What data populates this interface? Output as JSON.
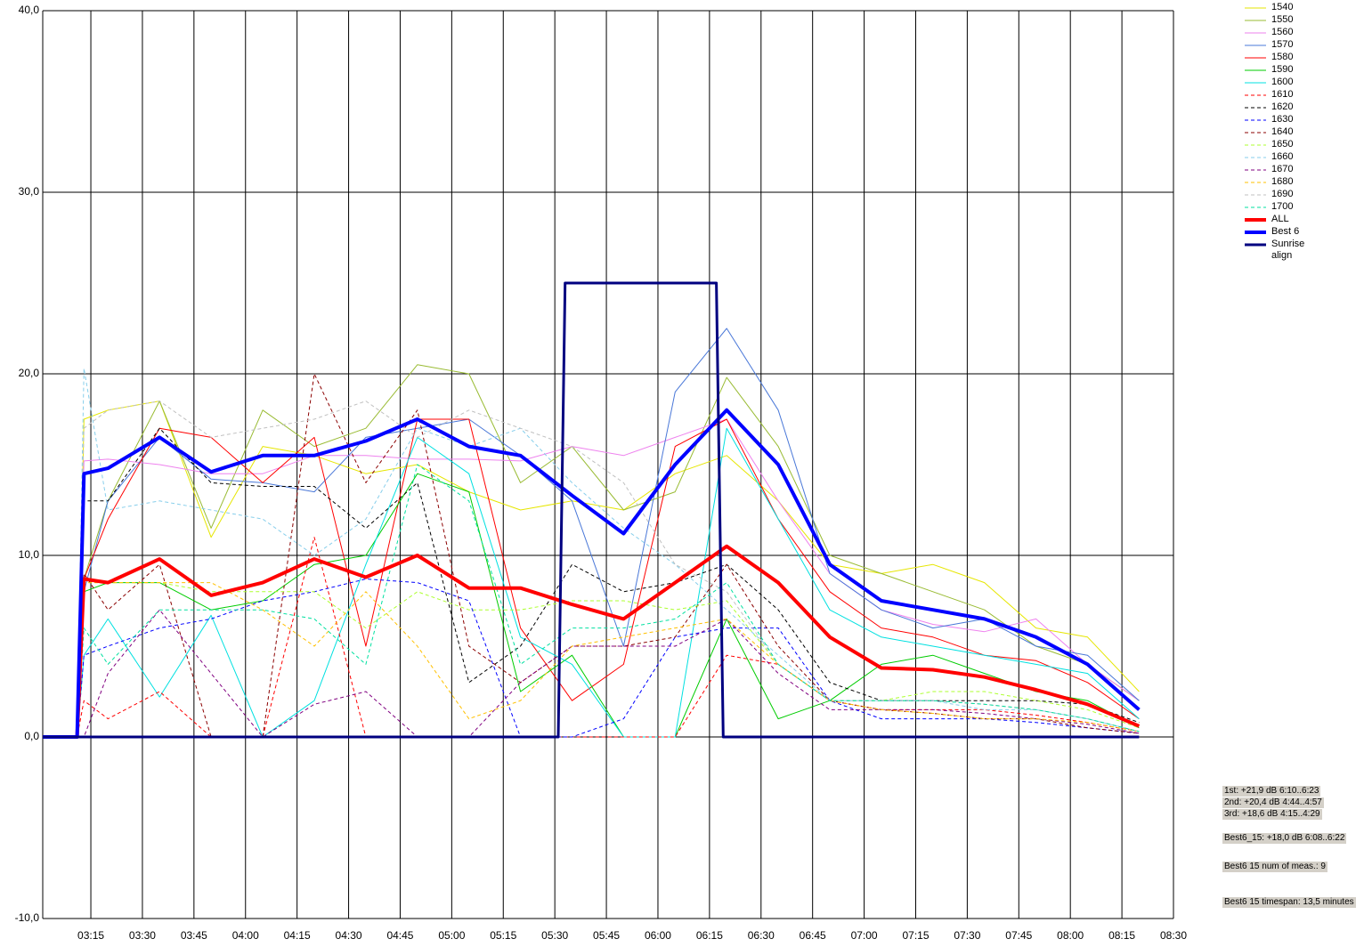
{
  "chart_data": {
    "type": "line",
    "x": [
      181,
      191,
      193,
      200,
      215,
      230,
      245,
      260,
      275,
      290,
      305,
      320,
      335,
      350,
      365,
      380,
      395,
      410,
      425,
      440,
      455,
      470,
      485,
      500
    ],
    "xlim": [
      181,
      510
    ],
    "xticks": [
      {
        "value": 195,
        "label": "03:15"
      },
      {
        "value": 210,
        "label": "03:30"
      },
      {
        "value": 225,
        "label": "03:45"
      },
      {
        "value": 240,
        "label": "04:00"
      },
      {
        "value": 255,
        "label": "04:15"
      },
      {
        "value": 270,
        "label": "04:30"
      },
      {
        "value": 285,
        "label": "04:45"
      },
      {
        "value": 300,
        "label": "05:00"
      },
      {
        "value": 315,
        "label": "05:15"
      },
      {
        "value": 330,
        "label": "05:30"
      },
      {
        "value": 345,
        "label": "05:45"
      },
      {
        "value": 360,
        "label": "06:00"
      },
      {
        "value": 375,
        "label": "06:15"
      },
      {
        "value": 390,
        "label": "06:30"
      },
      {
        "value": 405,
        "label": "06:45"
      },
      {
        "value": 420,
        "label": "07:00"
      },
      {
        "value": 435,
        "label": "07:15"
      },
      {
        "value": 450,
        "label": "07:30"
      },
      {
        "value": 465,
        "label": "07:45"
      },
      {
        "value": 480,
        "label": "08:00"
      },
      {
        "value": 495,
        "label": "08:15"
      },
      {
        "value": 510,
        "label": "08:30"
      }
    ],
    "ylim": [
      -10,
      40
    ],
    "yticks": [
      {
        "value": 40,
        "label": "40,0"
      },
      {
        "value": 30,
        "label": "30,0"
      },
      {
        "value": 20,
        "label": "20,0"
      },
      {
        "value": 10,
        "label": "10,0"
      },
      {
        "value": 0,
        "label": "0,0"
      },
      {
        "value": -10,
        "label": "-10,0"
      }
    ],
    "grid": true,
    "legend": "top-right",
    "series": [
      {
        "name": "1540",
        "color": "#e6e600",
        "dash": false,
        "width": 1,
        "values": [
          0,
          0,
          17.5,
          18,
          18.5,
          11,
          16,
          15.5,
          14.5,
          15,
          13.5,
          12.5,
          13,
          12.5,
          14.5,
          15.5,
          13,
          9.5,
          9,
          9.5,
          8.5,
          6,
          5.5,
          2.5
        ]
      },
      {
        "name": "1550",
        "color": "#99bb33",
        "dash": false,
        "width": 1,
        "values": [
          0,
          0,
          8.7,
          13,
          18.5,
          11.5,
          18,
          16,
          17,
          20.5,
          20,
          14,
          16,
          12.5,
          13.5,
          19.8,
          16,
          10,
          9,
          8,
          7,
          5,
          4,
          2
        ]
      },
      {
        "name": "1560",
        "color": "#ee82ee",
        "dash": false,
        "width": 1,
        "values": [
          0,
          0,
          15.2,
          15.3,
          15,
          14.5,
          14.5,
          15.5,
          15.5,
          15.3,
          15.3,
          15.2,
          16,
          15.5,
          16.5,
          17.5,
          13,
          9,
          7,
          6.2,
          5.8,
          6.5,
          4,
          2
        ]
      },
      {
        "name": "1570",
        "color": "#4a78d8",
        "dash": false,
        "width": 1,
        "values": [
          0,
          0,
          8,
          13,
          16.5,
          14.2,
          14,
          13.5,
          16.5,
          17,
          17.5,
          15.5,
          13,
          5,
          19,
          22.5,
          18,
          9,
          7,
          6,
          6.5,
          5,
          4.5,
          2
        ]
      },
      {
        "name": "1580",
        "color": "#ff0000",
        "dash": false,
        "width": 1,
        "values": [
          0,
          0,
          8.7,
          12,
          17,
          16.5,
          14,
          16.5,
          5,
          17.5,
          17.5,
          6,
          2,
          4,
          16,
          17.5,
          12,
          8,
          6,
          5.5,
          4.5,
          4.2,
          3,
          1
        ]
      },
      {
        "name": "1590",
        "color": "#00cc00",
        "dash": false,
        "width": 1,
        "values": [
          0,
          0,
          8,
          8.5,
          8.5,
          7,
          7.5,
          9.5,
          10,
          14.5,
          13.5,
          2.5,
          4.5,
          0,
          0,
          6.5,
          1,
          2,
          4,
          4.5,
          3.5,
          2.5,
          2,
          0.5
        ]
      },
      {
        "name": "1600",
        "color": "#00e0e0",
        "dash": false,
        "width": 1,
        "values": [
          0,
          0,
          4.5,
          6.5,
          2.2,
          6.7,
          0,
          2,
          9.5,
          16.5,
          14.5,
          5.5,
          4,
          0,
          0,
          17,
          12,
          7,
          5.5,
          5,
          4.5,
          4,
          3.5,
          1
        ]
      },
      {
        "name": "1610",
        "color": "#ff0000",
        "dash": true,
        "width": 1,
        "values": [
          0,
          0,
          2,
          1,
          2.5,
          0,
          0,
          11,
          0,
          0,
          0,
          0,
          0,
          0,
          0,
          4.5,
          4,
          2,
          1.5,
          1.5,
          1.5,
          1.2,
          0.8,
          0.3
        ]
      },
      {
        "name": "1620",
        "color": "#000000",
        "dash": true,
        "width": 1,
        "values": [
          0,
          0,
          13,
          13,
          17,
          14,
          13.8,
          13.8,
          11.5,
          14,
          3,
          5,
          9.5,
          8,
          8.5,
          9.5,
          7,
          3,
          2,
          2,
          2,
          2,
          1.8,
          0.8
        ]
      },
      {
        "name": "1630",
        "color": "#0000ff",
        "dash": true,
        "width": 1,
        "values": [
          0,
          0,
          4.5,
          5,
          6,
          6.5,
          7.5,
          8,
          8.7,
          8.5,
          7.5,
          0,
          0,
          1,
          5.5,
          6,
          6,
          2,
          1,
          1,
          1,
          0.8,
          0.5,
          0.2
        ]
      },
      {
        "name": "1640",
        "color": "#8b0000",
        "dash": true,
        "width": 1,
        "values": [
          0,
          0,
          9,
          7,
          9.5,
          0,
          0,
          20,
          14,
          18,
          5,
          3,
          5,
          5,
          5.5,
          9.5,
          5,
          2,
          1.5,
          1.3,
          1,
          1,
          0.5,
          0.2
        ]
      },
      {
        "name": "1650",
        "color": "#adff2f",
        "dash": true,
        "width": 1,
        "values": [
          0,
          0,
          8.5,
          8.5,
          8.5,
          8,
          8,
          8,
          6,
          8,
          7,
          7,
          7.5,
          7.5,
          7,
          7.5,
          4,
          2,
          2,
          2.5,
          2.5,
          2,
          1.5,
          0.5
        ]
      },
      {
        "name": "1660",
        "color": "#87ceeb",
        "dash": true,
        "width": 1,
        "values": [
          0,
          0,
          20.3,
          12.5,
          13,
          12.5,
          12,
          10,
          12,
          17,
          16,
          17,
          14,
          11.5,
          9.5,
          7,
          4.5,
          2,
          2,
          2,
          1.5,
          1.5,
          1,
          0.3
        ]
      },
      {
        "name": "1670",
        "color": "#800080",
        "dash": true,
        "width": 1,
        "values": [
          0,
          0,
          0,
          3.5,
          7,
          3.5,
          0,
          1.8,
          2.5,
          0,
          0,
          3,
          5,
          5,
          5,
          6.5,
          3.5,
          1.5,
          1.5,
          1.5,
          1.3,
          1,
          0.7,
          0.2
        ]
      },
      {
        "name": "1680",
        "color": "#ffc000",
        "dash": true,
        "width": 1,
        "values": [
          0,
          0,
          8.5,
          8.5,
          8.5,
          8.5,
          7,
          5,
          8,
          5,
          1,
          2,
          5,
          5.5,
          6,
          6.5,
          4,
          2,
          1.5,
          1.3,
          1,
          1,
          0.8,
          0.3
        ]
      },
      {
        "name": "1690",
        "color": "#c0c0c0",
        "dash": true,
        "width": 1,
        "values": [
          0,
          0,
          17,
          18,
          18.5,
          16.5,
          17,
          17.5,
          18.5,
          16.5,
          18,
          17,
          16,
          14,
          9.5,
          8,
          4,
          2,
          2,
          2,
          1.8,
          1.5,
          1,
          0.3
        ]
      },
      {
        "name": "1700",
        "color": "#00e0a0",
        "dash": true,
        "width": 1,
        "values": [
          0,
          0,
          6,
          4,
          7,
          7,
          7,
          6.5,
          4,
          15,
          13,
          4,
          6,
          6,
          6.5,
          8.5,
          4,
          2,
          2,
          2,
          1.8,
          1.5,
          1,
          0.3
        ]
      },
      {
        "name": "ALL",
        "color": "#ff0000",
        "dash": false,
        "width": 4,
        "values": [
          0,
          0,
          8.7,
          8.5,
          9.8,
          7.8,
          8.5,
          9.8,
          8.8,
          10,
          8.2,
          8.2,
          7.3,
          6.5,
          8.5,
          10.5,
          8.5,
          5.5,
          3.8,
          3.7,
          3.3,
          2.6,
          1.8,
          0.6
        ]
      },
      {
        "name": "Best 6",
        "color": "#0000ff",
        "dash": false,
        "width": 4,
        "values": [
          0,
          0,
          14.5,
          14.8,
          16.5,
          14.6,
          15.5,
          15.5,
          16.3,
          17.5,
          16,
          15.5,
          13.3,
          11.2,
          15,
          18,
          15,
          9.5,
          7.5,
          7,
          6.5,
          5.5,
          4,
          1.5
        ]
      },
      {
        "name": "Sunrise align",
        "color": "#000080",
        "dash": false,
        "width": 3,
        "x": [
          181,
          191,
          331,
          333,
          377,
          379,
          500
        ],
        "values": [
          0,
          0,
          0,
          25,
          25,
          0,
          0
        ]
      }
    ],
    "annotations": [
      "1st: +21,9 dB 6:10..6:23",
      "2nd: +20,4 dB 4:44..4:57",
      "3rd: +18,6 dB 4:15..4:29",
      "Best6_15: +18,0 dB 6:08..6:22",
      "Best6 15 num of meas.: 9",
      "Best6 15 timespan: 13,5 minutes"
    ]
  }
}
